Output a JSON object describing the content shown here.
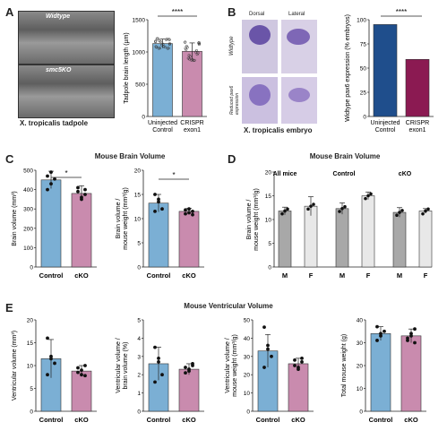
{
  "panels": {
    "A": {
      "letter": "A",
      "micro_top_label": "Widtype",
      "micro_bottom_label": "smc5KO",
      "caption": "X. tropicalis tadpole",
      "chart_ylabel": "Tadpole brain length (µm)",
      "significance": "****"
    },
    "B": {
      "letter": "B",
      "col_dorsal": "Dorsal",
      "col_lateral": "Lateral",
      "row_top": "Widtype",
      "row_bottom": "Reduced pax6 expression",
      "caption": "X. tropicalis embryo",
      "chart_ylabel": "Widtype pax6 expression (% embryos)",
      "significance": "****"
    },
    "C": {
      "letter": "C",
      "title": "Mouse Brain Volume",
      "sig1": "*",
      "sig2": "*"
    },
    "D": {
      "letter": "D",
      "title": "Mouse Brain Volume",
      "group_all": "All mice",
      "group_control": "Control",
      "group_cko": "cKO"
    },
    "E": {
      "letter": "E",
      "title": "Mouse Ventricular Volume"
    }
  },
  "colors": {
    "blue": "#7bafd4",
    "pink": "#c98bae",
    "navy": "#1f4e8c",
    "maroon": "#8b1a52",
    "gray": "#a8a8a8",
    "light": "#e8e8e8"
  },
  "chart_data": [
    {
      "id": "A",
      "type": "bar",
      "categories": [
        "Uninjected Control",
        "CRISPR exon1"
      ],
      "values": [
        1130,
        1010
      ],
      "errors": [
        70,
        130
      ],
      "ylabel": "Tadpole brain length (µm)",
      "ylim": [
        0,
        1500
      ],
      "yticks": [
        0,
        500,
        1000,
        1500
      ]
    },
    {
      "id": "B",
      "type": "bar",
      "categories": [
        "Uninjected Control",
        "CRISPR exon1"
      ],
      "values": [
        95,
        59
      ],
      "ylabel": "Widtype pax6 expression (% embryos)",
      "ylim": [
        0,
        100
      ],
      "yticks": [
        0,
        25,
        50,
        75,
        100
      ]
    },
    {
      "id": "C1",
      "type": "bar",
      "categories": [
        "Control",
        "cKO"
      ],
      "values": [
        450,
        380
      ],
      "errors": [
        45,
        40
      ],
      "ylabel": "Brain volume (mm³)",
      "ylim": [
        0,
        500
      ],
      "yticks": [
        0,
        100,
        200,
        300,
        400,
        500
      ],
      "points": [
        [
          470,
          430,
          455,
          400,
          490
        ],
        [
          410,
          360,
          375,
          390,
          350,
          400
        ]
      ]
    },
    {
      "id": "C2",
      "type": "bar",
      "categories": [
        "Control",
        "cKO"
      ],
      "values": [
        13.2,
        11.5
      ],
      "errors": [
        1.8,
        0.6
      ],
      "ylabel": "Brain volume / mouse weight (mm³/g)",
      "ylim": [
        0,
        20
      ],
      "yticks": [
        0,
        5,
        10,
        15,
        20
      ],
      "points": [
        [
          15,
          13.5,
          12,
          11.5,
          14
        ],
        [
          11,
          12,
          11.5,
          11.8,
          11.2,
          10.8
        ]
      ]
    },
    {
      "id": "D",
      "type": "bar",
      "categories": [
        "M",
        "F",
        "M",
        "F",
        "M",
        "F"
      ],
      "groups": [
        "All mice",
        "Control",
        "cKO"
      ],
      "values": [
        11.8,
        12.8,
        12.3,
        15.0,
        11.5,
        11.8
      ],
      "errors": [
        0.8,
        2.0,
        1.2,
        0.8,
        1.0,
        0.5
      ],
      "ylabel": "Brain volume / mouse weight (mm³/g)",
      "ylim": [
        0,
        20
      ],
      "yticks": [
        0,
        5,
        10,
        15,
        20
      ]
    },
    {
      "id": "E1",
      "type": "bar",
      "categories": [
        "Control",
        "cKO"
      ],
      "values": [
        11.5,
        8.8
      ],
      "errors": [
        4.2,
        1.2
      ],
      "ylabel": "Ventricular volume (mm³)",
      "ylim": [
        0,
        20
      ],
      "yticks": [
        0,
        5,
        10,
        15,
        20
      ],
      "points": [
        [
          16,
          12,
          10.5,
          8,
          11.5
        ],
        [
          9.5,
          8,
          10,
          8.5,
          9,
          7.8
        ]
      ]
    },
    {
      "id": "E2",
      "type": "bar",
      "categories": [
        "Control",
        "cKO"
      ],
      "values": [
        2.6,
        2.3
      ],
      "errors": [
        0.9,
        0.3
      ],
      "ylabel": "Ventricular volume / brain volume (%)",
      "ylim": [
        0,
        5
      ],
      "yticks": [
        0,
        1,
        2,
        3,
        4,
        5
      ],
      "points": [
        [
          3.5,
          2.7,
          2.0,
          1.6,
          2.9
        ],
        [
          2.4,
          2.2,
          2.6,
          2.1,
          2.3,
          2.5
        ]
      ]
    },
    {
      "id": "E3",
      "type": "bar",
      "categories": [
        "Control",
        "cKO"
      ],
      "values": [
        33,
        26
      ],
      "errors": [
        9,
        3
      ],
      "ylabel": "Ventricular volume / mouse weight (mm³/g)",
      "ylim": [
        0,
        50
      ],
      "yticks": [
        0,
        10,
        20,
        30,
        40,
        50
      ],
      "points": [
        [
          46,
          34,
          30,
          24,
          36
        ],
        [
          28,
          24,
          27,
          25,
          23,
          29
        ]
      ]
    },
    {
      "id": "E4",
      "type": "bar",
      "categories": [
        "Control",
        "cKO"
      ],
      "values": [
        34,
        33
      ],
      "errors": [
        3,
        3
      ],
      "ylabel": "Total mouse weight (g)",
      "ylim": [
        0,
        40
      ],
      "yticks": [
        0,
        10,
        20,
        30,
        40
      ],
      "points": [
        [
          37,
          33,
          35,
          31,
          34
        ],
        [
          31,
          34,
          36,
          32,
          33,
          30
        ]
      ]
    }
  ]
}
